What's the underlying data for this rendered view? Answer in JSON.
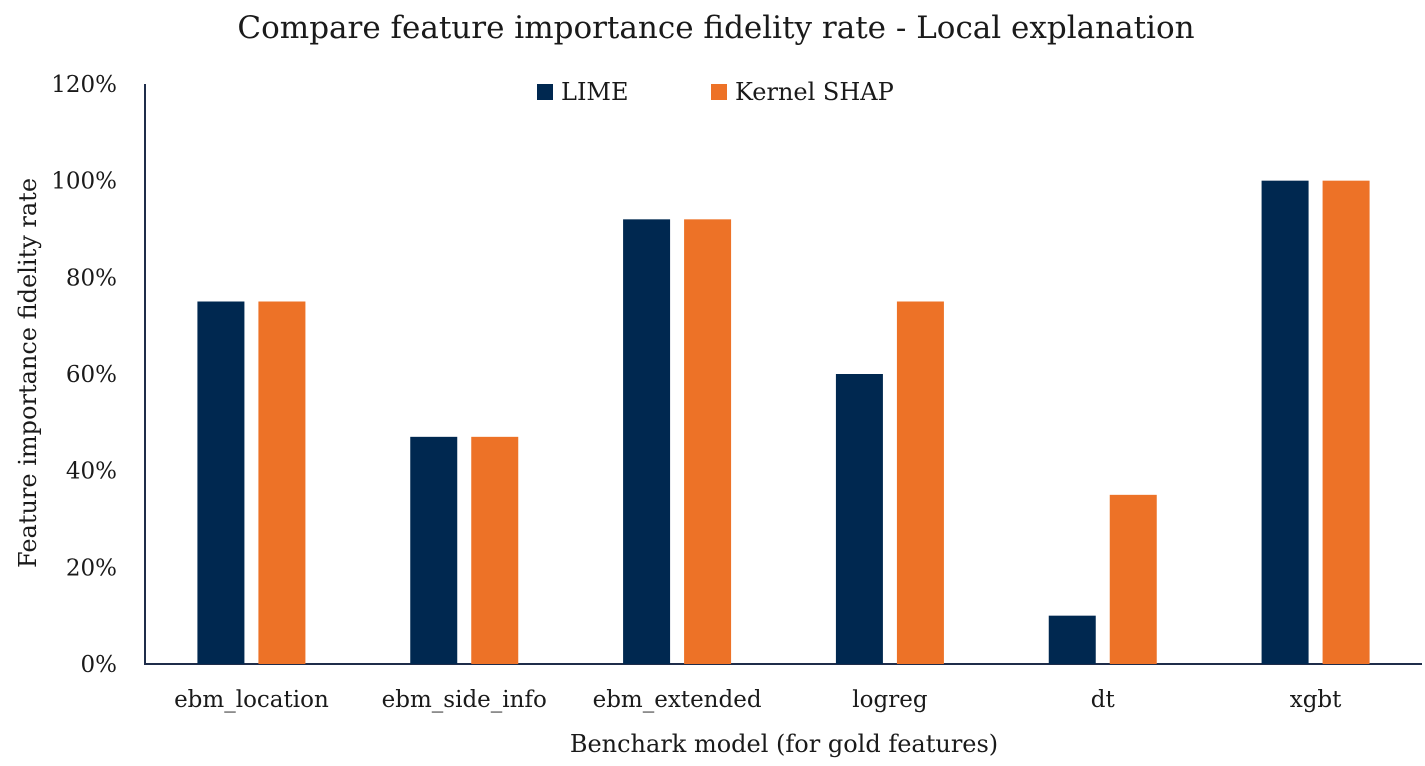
{
  "chart_data": {
    "type": "bar",
    "title": "Compare feature importance fidelity rate - Local explanation",
    "xlabel": "Benchark model (for gold features)",
    "ylabel": "Feature importance fidelity rate",
    "categories": [
      "ebm_location",
      "ebm_side_info",
      "ebm_extended",
      "logreg",
      "dt",
      "xgbt"
    ],
    "series": [
      {
        "name": "LIME",
        "color": "#002850",
        "values": [
          75,
          47,
          92,
          60,
          10,
          100
        ]
      },
      {
        "name": "Kernel SHAP",
        "color": "#ED7227",
        "values": [
          75,
          47,
          92,
          75,
          35,
          100
        ]
      }
    ],
    "ylim": [
      0,
      120
    ],
    "yticks": [
      0,
      20,
      40,
      60,
      80,
      100,
      120
    ],
    "ytick_labels": [
      "0%",
      "20%",
      "40%",
      "60%",
      "80%",
      "100%",
      "120%"
    ],
    "grid": false,
    "legend_position": "top-center"
  }
}
